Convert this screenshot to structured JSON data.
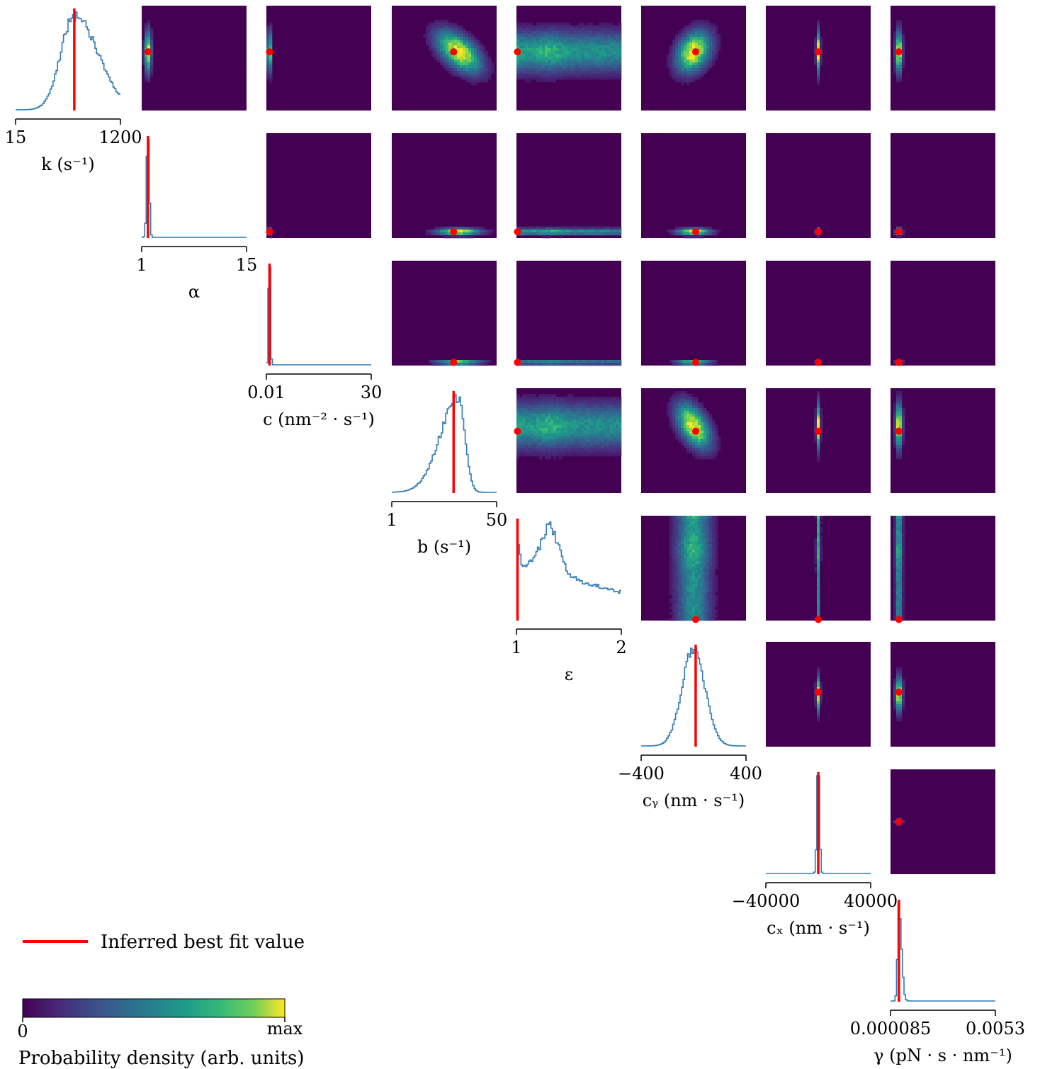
{
  "chart_data": {
    "type": "heatmap",
    "parameters": [
      {
        "label": "k (s⁻¹)",
        "tick_min": "15",
        "tick_max": "1200",
        "range": [
          15,
          1200
        ],
        "best_fit_frac": 0.56
      },
      {
        "label": "α",
        "tick_min": "1",
        "tick_max": "15",
        "range": [
          1,
          15
        ],
        "best_fit_frac": 0.06
      },
      {
        "label": "c (nm⁻² · s⁻¹)",
        "tick_min": "0.01",
        "tick_max": "30",
        "range": [
          0.01,
          30
        ],
        "best_fit_frac": 0.03
      },
      {
        "label": "b (s⁻¹)",
        "tick_min": "1",
        "tick_max": "50",
        "range": [
          1,
          50
        ],
        "best_fit_frac": 0.59
      },
      {
        "label": "ε",
        "tick_min": "1",
        "tick_max": "2",
        "range": [
          1,
          2
        ],
        "best_fit_frac": 0.01
      },
      {
        "label": "cᵧ (nm · s⁻¹)",
        "tick_min": "−400",
        "tick_max": "400",
        "range": [
          -400,
          400
        ],
        "best_fit_frac": 0.52
      },
      {
        "label": "cₓ (nm · s⁻¹)",
        "tick_min": "−40000",
        "tick_max": "40000",
        "range": [
          -40000,
          40000
        ],
        "best_fit_frac": 0.5
      },
      {
        "label": "γ (pN · s · nm⁻¹)",
        "tick_min": "0.000085",
        "tick_max": "0.0053",
        "range": [
          8.5e-05,
          0.0053
        ],
        "best_fit_frac": 0.08
      }
    ],
    "marginals": [
      {
        "shape": "gauss",
        "mean": 0.56,
        "sd": 0.15,
        "skew": 0.5
      },
      {
        "shape": "gauss",
        "mean": 0.06,
        "sd": 0.012,
        "skew": 0
      },
      {
        "shape": "gauss",
        "mean": 0.03,
        "sd": 0.008,
        "skew": 0
      },
      {
        "shape": "gauss",
        "mean": 0.64,
        "sd": 0.15,
        "skew": -0.6
      },
      {
        "shape": "epsilon"
      },
      {
        "shape": "gauss",
        "mean": 0.5,
        "sd": 0.11,
        "skew": 0
      },
      {
        "shape": "gauss",
        "mean": 0.5,
        "sd": 0.012,
        "skew": 0
      },
      {
        "shape": "gauss",
        "mean": 0.08,
        "sd": 0.015,
        "skew": 0.6
      }
    ],
    "joint_spread": [
      0.12,
      0.02,
      0.012,
      0.13,
      0.45,
      0.1,
      0.012,
      0.02
    ],
    "correlations": {
      "0-3": -0.55,
      "0-5": 0.3,
      "3-5": -0.5
    },
    "legend": {
      "line_label": "Inferred best fit value"
    },
    "colorbar": {
      "label": "Probability density (arb. units)",
      "min_label": "0",
      "max_label": "max",
      "colormap": "viridis"
    },
    "colors": {
      "histogram": "#2e7bb6",
      "best_fit": "#ff0000",
      "background": "#440154"
    }
  }
}
